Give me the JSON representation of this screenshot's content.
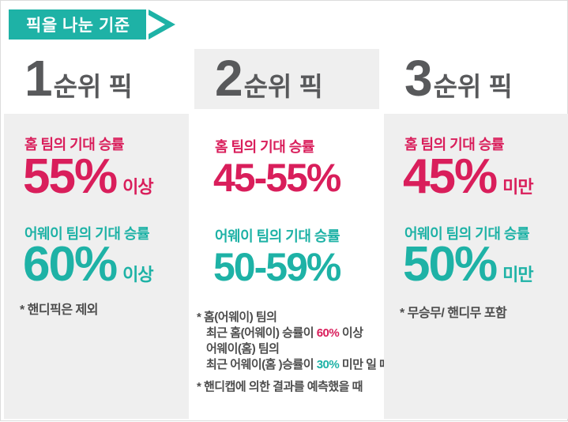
{
  "colors": {
    "teal": "#1eb2a6",
    "pink": "#d91e5b",
    "heading_gray": "#58595b",
    "box_gray": "#efefef",
    "note_gray": "#4d4d4d"
  },
  "banner": {
    "title": "픽을 나눈 기준"
  },
  "columns": [
    {
      "rank_number": "1",
      "rank_suffix": "순위 픽",
      "home_label": "홈 팀의 기대 승률",
      "home_value": "55%",
      "home_qualifier": "이상",
      "away_label": "어웨이 팀의 기대 승률",
      "away_value": "60%",
      "away_qualifier": "이상",
      "note": "* 핸디픽은 제외"
    },
    {
      "rank_number": "2",
      "rank_suffix": "순위 픽",
      "home_label": "홈 팀의 기대 승률",
      "home_value": "45-55%",
      "away_label": "어웨이 팀의 기대 승률",
      "away_value": "50-59%",
      "note1_lines": [
        [
          "* 홈(어웨이) 팀의"
        ],
        [
          "최근 홈(어웨이) 승률이 ",
          "60%",
          " 이상"
        ],
        [
          "어웨이(홈) 팀의"
        ],
        [
          "최근 어웨이(홈 )승률이 ",
          "30%",
          " 미만 일 때."
        ]
      ],
      "note2": "* 핸디캡에 의한 결과를 예측했을 때"
    },
    {
      "rank_number": "3",
      "rank_suffix": "순위 픽",
      "home_label": "홈 팀의 기대 승률",
      "home_value": "45%",
      "home_qualifier": "미만",
      "away_label": "어웨이 팀의 기대 승률",
      "away_value": "50%",
      "away_qualifier": "미만",
      "note": "* 무승무/ 핸디무 포함"
    }
  ]
}
